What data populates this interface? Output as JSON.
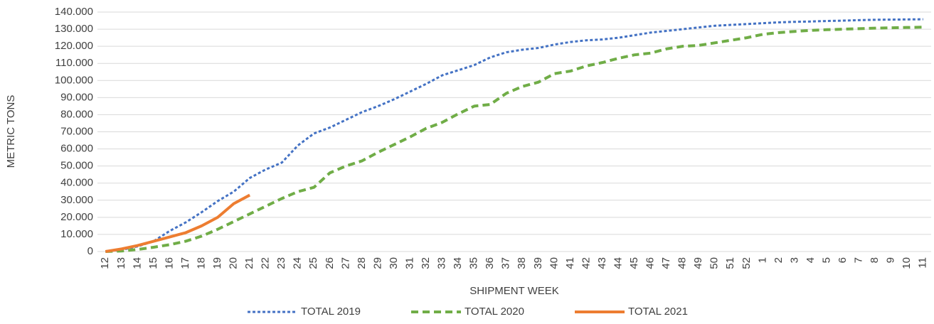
{
  "chart_data": {
    "type": "line",
    "y_label": "METRIC TONS",
    "x_label": "SHIPMENT WEEK",
    "categories": [
      12,
      13,
      14,
      15,
      16,
      17,
      18,
      19,
      20,
      21,
      22,
      23,
      24,
      25,
      26,
      27,
      28,
      29,
      30,
      31,
      32,
      33,
      34,
      35,
      36,
      37,
      38,
      39,
      40,
      41,
      42,
      43,
      44,
      45,
      46,
      47,
      48,
      49,
      50,
      51,
      52,
      1,
      2,
      3,
      4,
      5,
      6,
      7,
      8,
      9,
      10,
      11
    ],
    "series": [
      {
        "name": "TOTAL 2019",
        "color": "#4472c4",
        "style": "dotted",
        "values": [
          0,
          1000,
          3000,
          6000,
          12000,
          17000,
          23000,
          29500,
          35000,
          43000,
          48000,
          52000,
          62000,
          69000,
          72500,
          77000,
          81500,
          85000,
          89000,
          93500,
          98000,
          103000,
          106000,
          109000,
          113500,
          116500,
          118000,
          119000,
          121000,
          122500,
          123500,
          124000,
          125000,
          126500,
          128000,
          129000,
          130000,
          131000,
          132000,
          132500,
          133000,
          133500,
          134000,
          134300,
          134500,
          134800,
          135000,
          135300,
          135500,
          135600,
          135700,
          135800
        ]
      },
      {
        "name": "TOTAL 2020",
        "color": "#70ad47",
        "style": "dashed",
        "values": [
          0,
          300,
          1200,
          2500,
          4000,
          6000,
          9000,
          13000,
          17500,
          22000,
          26500,
          31000,
          35000,
          37500,
          46000,
          50000,
          53000,
          58000,
          62500,
          67000,
          72000,
          75500,
          80500,
          85000,
          86000,
          92500,
          96500,
          99000,
          104000,
          105500,
          108500,
          110500,
          113000,
          115000,
          116000,
          118500,
          120000,
          120500,
          122000,
          123500,
          125000,
          127000,
          128000,
          128700,
          129300,
          129700,
          130000,
          130300,
          130600,
          130800,
          131000,
          131200
        ]
      },
      {
        "name": "TOTAL 2021",
        "color": "#ed7d31",
        "style": "solid",
        "values": [
          0,
          1500,
          3500,
          6000,
          8500,
          11000,
          15000,
          20000,
          28000,
          33000,
          null,
          null,
          null,
          null,
          null,
          null,
          null,
          null,
          null,
          null,
          null,
          null,
          null,
          null,
          null,
          null,
          null,
          null,
          null,
          null,
          null,
          null,
          null,
          null,
          null,
          null,
          null,
          null,
          null,
          null,
          null,
          null,
          null,
          null,
          null,
          null,
          null,
          null,
          null,
          null,
          null,
          null
        ]
      }
    ],
    "ylim": [
      0,
      140000
    ],
    "yticks": [
      0,
      {
        "value": 10000,
        "label": "10.000"
      },
      {
        "value": 20000,
        "label": "20.000"
      },
      {
        "value": 30000,
        "label": "30.000"
      },
      {
        "value": 40000,
        "label": "40.000"
      },
      {
        "value": 50000,
        "label": "50.000"
      },
      {
        "value": 60000,
        "label": "60.000"
      },
      {
        "value": 70000,
        "label": "70.000"
      },
      {
        "value": 80000,
        "label": "80.000"
      },
      {
        "value": 90000,
        "label": "90.000"
      },
      {
        "value": 100000,
        "label": "100.000"
      },
      {
        "value": 110000,
        "label": "110.000"
      },
      {
        "value": 120000,
        "label": "120.000"
      },
      {
        "value": 130000,
        "label": "130.000"
      },
      {
        "value": 140000,
        "label": "140.000"
      }
    ],
    "grid": true,
    "legend": "bottom"
  }
}
